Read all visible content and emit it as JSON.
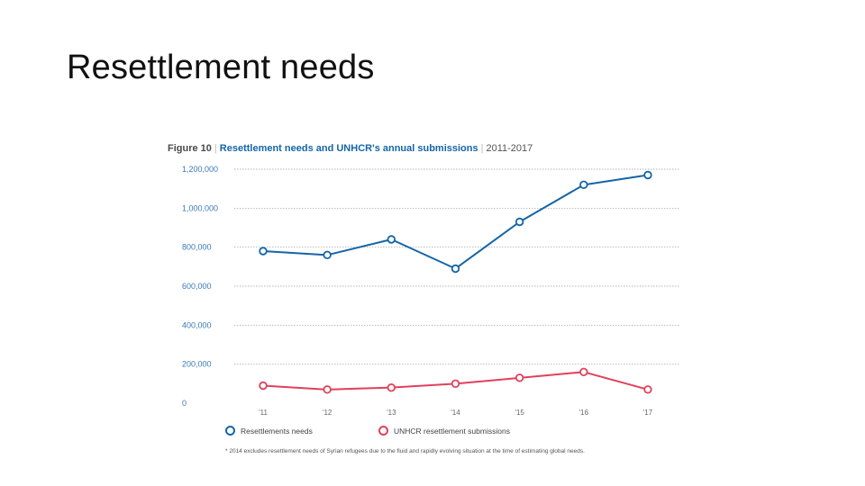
{
  "slide": {
    "title": "Resettlement needs"
  },
  "figure": {
    "number": "Figure 10",
    "separator": "|",
    "title": "Resettlement needs and UNHCR's annual submissions",
    "range": "2011-2017",
    "footnote": "* 2014 excludes resettlement needs of Syrian refugees due to the fluid and rapidly evolving situation at the time of estimating global needs."
  },
  "chart_data": {
    "type": "line",
    "title": "Resettlement needs and UNHCR's annual submissions",
    "x": [
      "'11",
      "'12",
      "'13",
      "'14",
      "'15",
      "'16",
      "'17"
    ],
    "yticks": [
      "0",
      "200,000",
      "400,000",
      "600,000",
      "800,000",
      "1,000,000",
      "1,200,000"
    ],
    "ylim": [
      0,
      1200000
    ],
    "grid": true,
    "legend_position": "bottom",
    "series": [
      {
        "name": "Resettlements needs",
        "color": "#1565a8",
        "values": [
          780000,
          760000,
          840000,
          690000,
          930000,
          1120000,
          1170000
        ]
      },
      {
        "name": "UNHCR resettlement submissions",
        "color": "#e0415c",
        "values": [
          90000,
          70000,
          80000,
          100000,
          130000,
          160000,
          70000
        ]
      }
    ]
  }
}
